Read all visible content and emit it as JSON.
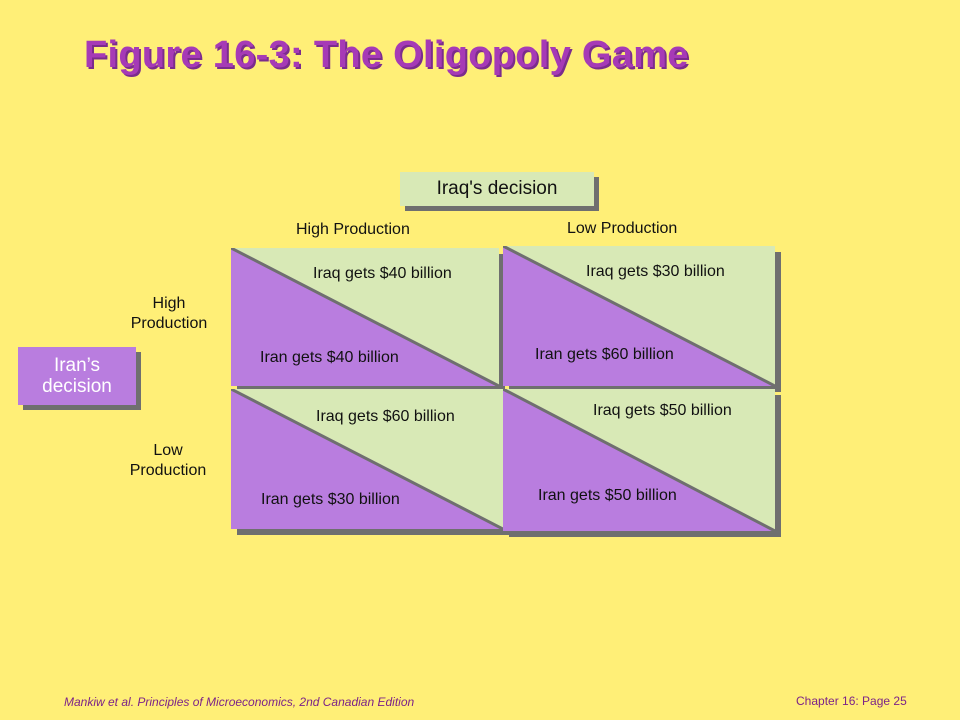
{
  "title": "Figure 16-3: The Oligopoly Game",
  "iraq_decision": "Iraq's decision",
  "iran_decision_line1": "Iran’s",
  "iran_decision_line2": "decision",
  "columns": {
    "high": "High Production",
    "low": "Low Production"
  },
  "rows": {
    "high_line1": "High",
    "high_line2": "Production",
    "low_line1": "Low",
    "low_line2": "Production"
  },
  "cells": {
    "high_high": {
      "iraq": "Iraq gets $40 billion",
      "iran": "Iran gets $40 billion"
    },
    "high_low": {
      "iraq": "Iraq gets $30 billion",
      "iran": "Iran gets $60 billion"
    },
    "low_high": {
      "iraq": "Iraq gets $60 billion",
      "iran": "Iran gets $30 billion"
    },
    "low_low": {
      "iraq": "Iraq gets $50 billion",
      "iran": "Iran gets $50 billion"
    }
  },
  "footer": {
    "left": "Mankiw et al. Principles of Microeconomics, 2nd Canadian Edition",
    "right": "Chapter 16: Page 25"
  },
  "colors": {
    "background": "#ffef77",
    "title": "#a63ab6",
    "iraq_fill": "#d8e9b6",
    "iran_fill": "#b97ddf",
    "shadow": "#6f6f6f",
    "footer": "#7c2388"
  }
}
